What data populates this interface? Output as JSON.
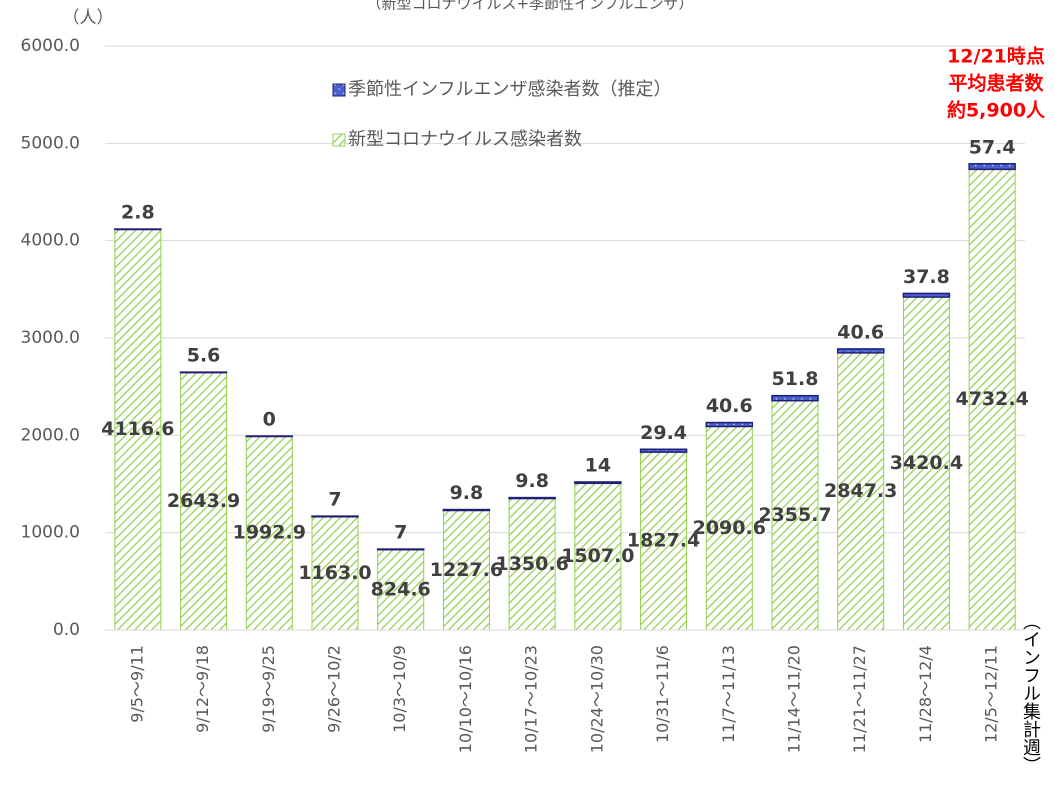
{
  "chart_data": {
    "type": "bar",
    "title": "（新型コロナウイルス+季節性インフルエンザ）",
    "y_label": "（人）",
    "x_label": "（インフル集計週）",
    "annotation": [
      "12/21時点",
      "平均患者数",
      "約5,900人"
    ],
    "categories": [
      "9/5～9/11",
      "9/12～9/18",
      "9/19～9/25",
      "9/26～10/2",
      "10/3～10/9",
      "10/10～10/16",
      "10/17～10/23",
      "10/24～10/30",
      "10/31～11/6",
      "11/7～11/13",
      "11/14～11/20",
      "11/21～11/27",
      "11/28～12/4",
      "12/5～12/11"
    ],
    "series": [
      {
        "name": "新型コロナウイルス感染者数",
        "color": "#92d050",
        "values": [
          4116.6,
          2643.9,
          1992.9,
          1163.0,
          824.6,
          1227.6,
          1350.6,
          1507.0,
          1827.4,
          2090.6,
          2355.7,
          2847.3,
          3420.4,
          4732.4
        ],
        "value_labels": [
          "4116.6",
          "2643.9",
          "1992.9",
          "1163.0",
          "824.6",
          "1227.6",
          "1350.6",
          "1507.0",
          "1827.4",
          "2090.6",
          "2355.7",
          "2847.3",
          "3420.4",
          "4732.4"
        ]
      },
      {
        "name": "季節性インフルエンザ感染者数（推定）",
        "color": "#4a5fc8",
        "values": [
          2.8,
          5.6,
          0,
          7,
          7,
          9.8,
          9.8,
          14,
          29.4,
          40.6,
          51.8,
          40.6,
          37.8,
          57.4
        ]
      }
    ],
    "stacked": true,
    "ylim": [
      0,
      6000
    ],
    "yticks": [
      {
        "value": 0,
        "label": "0.0"
      },
      {
        "value": 1000,
        "label": "1000.0"
      },
      {
        "value": 2000,
        "label": "2000.0"
      },
      {
        "value": 3000,
        "label": "3000.0"
      },
      {
        "value": 4000,
        "label": "4000.0"
      },
      {
        "value": 5000,
        "label": "5000.0"
      },
      {
        "value": 6000,
        "label": "6000.0"
      }
    ],
    "grid": true
  }
}
